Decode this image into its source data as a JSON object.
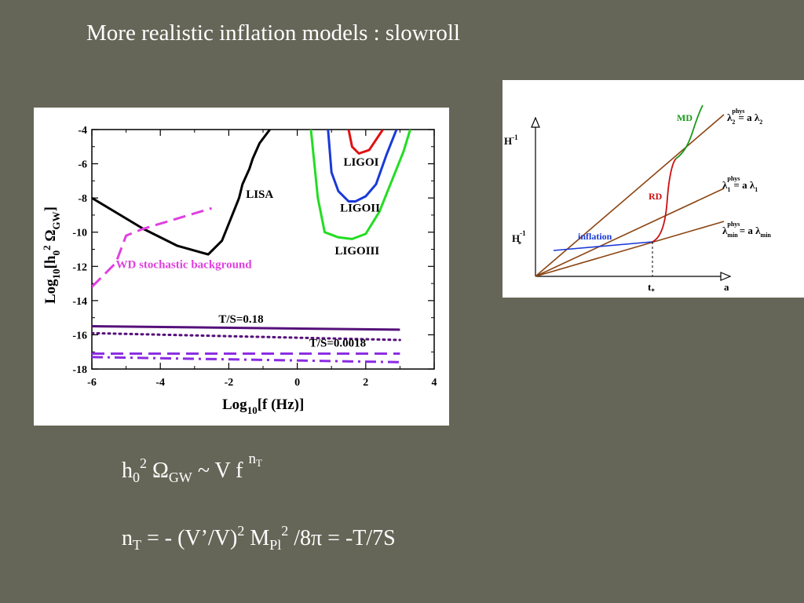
{
  "slide": {
    "title": "More realistic inflation models : slowroll"
  },
  "chart_data": [
    {
      "type": "line",
      "xlabel": "Log10[f (Hz)]",
      "ylabel": "Log10[h0² ΩGW]",
      "xlim": [
        -6,
        4
      ],
      "ylim": [
        -18,
        -4
      ],
      "xticks": [
        -6,
        -4,
        -2,
        0,
        2,
        4
      ],
      "yticks": [
        -4,
        -6,
        -8,
        -10,
        -12,
        -14,
        -16,
        -18
      ],
      "grid": false,
      "series": [
        {
          "name": "LISA",
          "color": "#000000",
          "style": "solid",
          "x": [
            -6,
            -4.5,
            -3.5,
            -2.6,
            -2.2,
            -1.9,
            -1.7,
            -1.6,
            -1.4,
            -1.3,
            -1.1,
            -0.8
          ],
          "y": [
            -8,
            -9.8,
            -10.8,
            -11.3,
            -10.5,
            -9,
            -8,
            -7.2,
            -6.3,
            -5.7,
            -4.8,
            -4
          ]
        },
        {
          "name": "WD stochastic background",
          "color": "#e040e0",
          "style": "dashed",
          "x": [
            -6,
            -5.3,
            -5,
            -4.5,
            -3.5,
            -2.5
          ],
          "y": [
            -13.2,
            -11.8,
            -10.2,
            -9.8,
            -9.2,
            -8.6
          ]
        },
        {
          "name": "LIGOI",
          "color": "#e01010",
          "style": "solid",
          "x": [
            1.5,
            1.6,
            1.8,
            2.1,
            2.3,
            2.5
          ],
          "y": [
            -4,
            -5,
            -5.4,
            -5.2,
            -4.6,
            -4
          ]
        },
        {
          "name": "LIGOII",
          "color": "#1a3ad8",
          "style": "solid",
          "x": [
            0.9,
            1.0,
            1.2,
            1.5,
            1.7,
            2.0,
            2.3,
            2.6,
            2.9
          ],
          "y": [
            -4,
            -6.5,
            -7.6,
            -8.2,
            -8.2,
            -7.9,
            -7.2,
            -5.5,
            -4
          ]
        },
        {
          "name": "LIGOIII",
          "color": "#22dd22",
          "style": "solid",
          "x": [
            0.4,
            0.6,
            0.8,
            1.2,
            1.6,
            2.0,
            2.4,
            2.8,
            3.1,
            3.3
          ],
          "y": [
            -4,
            -8,
            -10,
            -10.3,
            -10.4,
            -10.1,
            -8.8,
            -6.8,
            -5.3,
            -4
          ]
        },
        {
          "name": "T/S=0.18",
          "color": "#55107a",
          "style": "solid",
          "x": [
            -6,
            3
          ],
          "y": [
            -15.5,
            -15.7
          ]
        },
        {
          "name": "T/S=0.18 (dotted)",
          "color": "#55107a",
          "style": "dotted",
          "x": [
            -6,
            3
          ],
          "y": [
            -15.9,
            -16.3
          ]
        },
        {
          "name": "T/S=0.0018",
          "color": "#8a2be2",
          "style": "dashed",
          "x": [
            -6,
            3
          ],
          "y": [
            -17.1,
            -17.1
          ]
        },
        {
          "name": "T/S=0.0018 (dash-dot)",
          "color": "#8a2be2",
          "style": "dashdot",
          "x": [
            -6,
            3
          ],
          "y": [
            -17.3,
            -17.6
          ]
        }
      ],
      "annotations": [
        {
          "text": "LISA",
          "x": -1.5,
          "y": -8
        },
        {
          "text": "LIGOI",
          "x": 1.35,
          "y": -6.1
        },
        {
          "text": "LIGOII",
          "x": 1.25,
          "y": -8.8
        },
        {
          "text": "LIGOIII",
          "x": 1.1,
          "y": -11.3
        },
        {
          "text": "WD stochastic background",
          "x": -5.3,
          "y": -12.1
        },
        {
          "text": "T/S=0.18",
          "x": -2.3,
          "y": -15.3
        },
        {
          "text": "T/S=0.0018",
          "x": 0.35,
          "y": -16.7
        }
      ]
    },
    {
      "type": "diagram",
      "xlabel": "a",
      "ylabel": "H-1",
      "labels": {
        "lambda2": "λ2phys = a λ2",
        "lambda1": "λ1phys = a λ1",
        "lambdamin": "λminphys = a λmin",
        "md": "MD",
        "rd": "RD",
        "inflation": "inflation",
        "hstar": "H*-1",
        "tstar": "t*"
      },
      "colors": {
        "lines": "#8b4513",
        "md": "#1a9a1a",
        "rd": "#cc1111",
        "inflation": "#1a3ad8"
      }
    }
  ],
  "equations": {
    "eq1": {
      "h": "h",
      "h_sub": "0",
      "h_sup": "2",
      "omega": " Ω",
      "omega_sub": "GW",
      "rest": " ~  V f ",
      "exp": "n",
      "exp_sub": "T"
    },
    "eq2": {
      "n": "n",
      "n_sub": "T",
      "part1": " = - (V’/V)",
      "sq": "2",
      "m": " M",
      "m_sub": "Pl",
      "m_sup": "2",
      "part2": " /8π = -T/7S"
    }
  }
}
